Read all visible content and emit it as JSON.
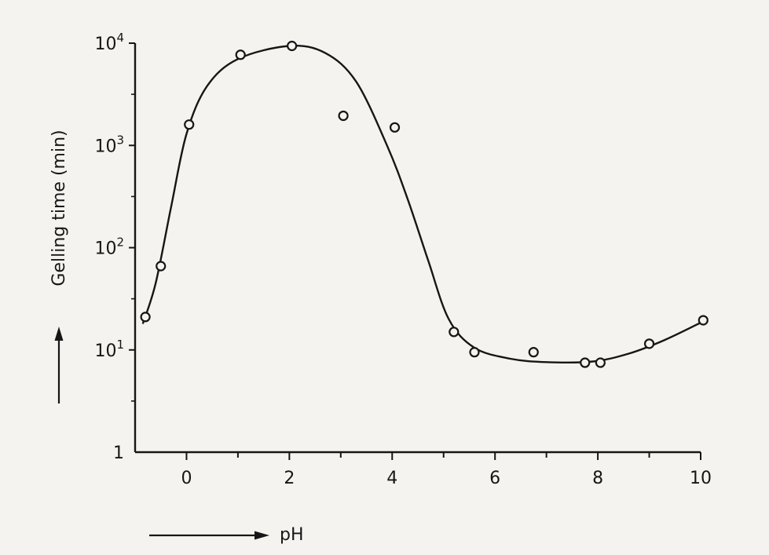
{
  "chart_data": {
    "type": "line",
    "title": "",
    "xlabel": "pH",
    "ylabel": "Gelling time (min)",
    "y_scale": "log",
    "xlim": [
      -1,
      10
    ],
    "ylim": [
      1,
      10000
    ],
    "x_ticks": [
      0,
      2,
      4,
      6,
      8,
      10
    ],
    "x_tick_labels": [
      "0",
      "2",
      "4",
      "6",
      "8",
      "10"
    ],
    "y_ticks": [
      1,
      10,
      100,
      1000,
      10000
    ],
    "y_tick_labels": [
      {
        "base": "1",
        "exp": ""
      },
      {
        "base": "10",
        "exp": "1"
      },
      {
        "base": "10",
        "exp": "2"
      },
      {
        "base": "10",
        "exp": "3"
      },
      {
        "base": "10",
        "exp": "4"
      }
    ],
    "grid": false,
    "arrows": [
      "x-axis label arrow",
      "y-axis label arrow"
    ],
    "series": [
      {
        "points": [
          {
            "x": -0.8,
            "y": 21
          },
          {
            "x": -0.5,
            "y": 66
          },
          {
            "x": 0.05,
            "y": 1600
          },
          {
            "x": 1.05,
            "y": 7700
          },
          {
            "x": 2.05,
            "y": 9400
          },
          {
            "x": 3.05,
            "y": 1950
          },
          {
            "x": 4.05,
            "y": 1500
          },
          {
            "x": 5.2,
            "y": 15
          },
          {
            "x": 5.6,
            "y": 9.5
          },
          {
            "x": 6.75,
            "y": 9.5
          },
          {
            "x": 7.75,
            "y": 7.5
          },
          {
            "x": 8.05,
            "y": 7.5
          },
          {
            "x": 9.0,
            "y": 11.5
          },
          {
            "x": 10.05,
            "y": 19.5
          }
        ],
        "fit_curve": [
          {
            "x": -0.85,
            "y": 18
          },
          {
            "x": -0.6,
            "y": 45
          },
          {
            "x": -0.3,
            "y": 250
          },
          {
            "x": 0.0,
            "y": 1300
          },
          {
            "x": 0.4,
            "y": 3800
          },
          {
            "x": 1.0,
            "y": 7000
          },
          {
            "x": 2.0,
            "y": 9400
          },
          {
            "x": 2.7,
            "y": 8000
          },
          {
            "x": 3.3,
            "y": 4200
          },
          {
            "x": 3.9,
            "y": 1000
          },
          {
            "x": 4.3,
            "y": 300
          },
          {
            "x": 4.7,
            "y": 75
          },
          {
            "x": 5.1,
            "y": 20
          },
          {
            "x": 5.6,
            "y": 10.5
          },
          {
            "x": 6.3,
            "y": 8.2
          },
          {
            "x": 7.0,
            "y": 7.6
          },
          {
            "x": 7.9,
            "y": 7.7
          },
          {
            "x": 8.6,
            "y": 9.2
          },
          {
            "x": 9.3,
            "y": 12.5
          },
          {
            "x": 10.05,
            "y": 19
          }
        ]
      }
    ]
  }
}
